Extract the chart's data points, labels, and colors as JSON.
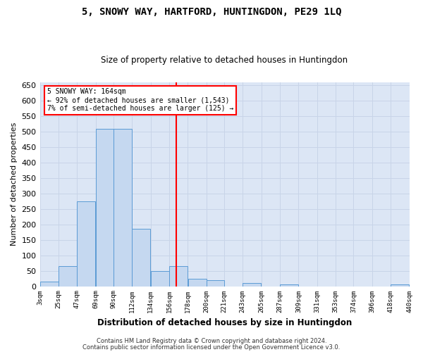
{
  "title": "5, SNOWY WAY, HARTFORD, HUNTINGDON, PE29 1LQ",
  "subtitle": "Size of property relative to detached houses in Huntingdon",
  "xlabel": "Distribution of detached houses by size in Huntingdon",
  "ylabel": "Number of detached properties",
  "footer1": "Contains HM Land Registry data © Crown copyright and database right 2024.",
  "footer2": "Contains public sector information licensed under the Open Government Licence v3.0.",
  "annotation_line1": "5 SNOWY WAY: 164sqm",
  "annotation_line2": "← 92% of detached houses are smaller (1,543)",
  "annotation_line3": "7% of semi-detached houses are larger (125) →",
  "bar_left_edges": [
    3,
    25,
    47,
    69,
    90,
    112,
    134,
    156,
    178,
    200,
    221,
    243,
    265,
    287,
    309,
    331,
    353,
    374,
    396,
    418
  ],
  "bar_widths": [
    22,
    22,
    22,
    21,
    22,
    22,
    22,
    22,
    22,
    21,
    22,
    22,
    22,
    22,
    22,
    22,
    21,
    22,
    22,
    22
  ],
  "bar_heights": [
    15,
    65,
    275,
    510,
    510,
    185,
    50,
    65,
    25,
    20,
    0,
    10,
    0,
    5,
    0,
    0,
    0,
    0,
    0,
    5
  ],
  "bar_color": "#c5d8f0",
  "bar_edge_color": "#5b9bd5",
  "vline_x": 164,
  "vline_color": "red",
  "ylim": [
    0,
    660
  ],
  "yticks": [
    0,
    50,
    100,
    150,
    200,
    250,
    300,
    350,
    400,
    450,
    500,
    550,
    600,
    650
  ],
  "xlim": [
    3,
    440
  ],
  "xtick_labels": [
    "3sqm",
    "25sqm",
    "47sqm",
    "69sqm",
    "90sqm",
    "112sqm",
    "134sqm",
    "156sqm",
    "178sqm",
    "200sqm",
    "221sqm",
    "243sqm",
    "265sqm",
    "287sqm",
    "309sqm",
    "331sqm",
    "353sqm",
    "374sqm",
    "396sqm",
    "418sqm",
    "440sqm"
  ],
  "xtick_positions": [
    3,
    25,
    47,
    69,
    90,
    112,
    134,
    156,
    178,
    200,
    221,
    243,
    265,
    287,
    309,
    331,
    353,
    374,
    396,
    418,
    440
  ],
  "grid_color": "#c8d4e8",
  "background_color": "#dce6f5",
  "annotation_box_color": "white",
  "annotation_box_edge_color": "red",
  "title_fontsize": 10,
  "subtitle_fontsize": 8.5,
  "ylabel_fontsize": 8,
  "xlabel_fontsize": 8.5,
  "footer_fontsize": 6,
  "ytick_fontsize": 8,
  "xtick_fontsize": 6.5
}
